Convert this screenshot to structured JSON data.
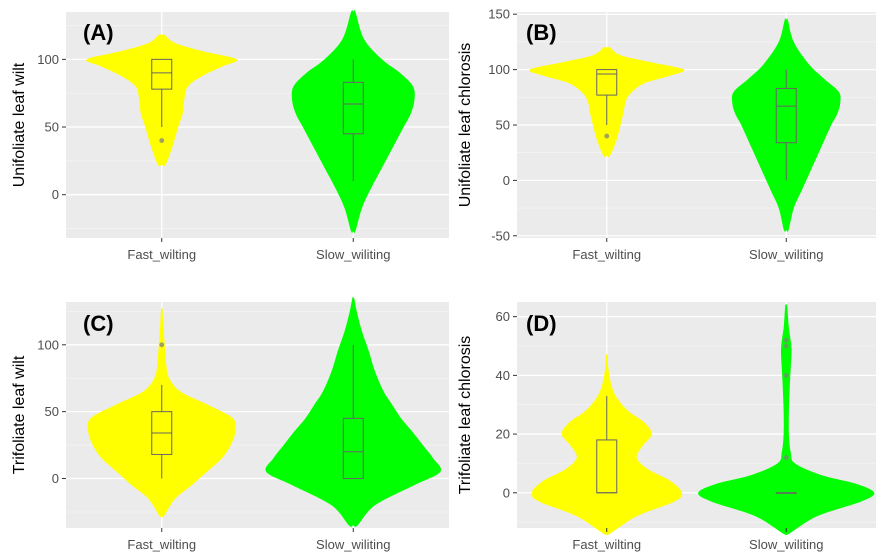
{
  "chart_data": [
    {
      "type": "violin",
      "panel_label": "(A)",
      "ylabel": "Unifoliate leaf wilt",
      "categories": [
        "Fast_wilting",
        "Slow_wiliting"
      ],
      "ylim": [
        -32,
        135
      ],
      "yticks": [
        0,
        50,
        100
      ],
      "grid": true,
      "series": [
        {
          "category": "Fast_wilting",
          "color": "#ffff00",
          "box": {
            "q1": 78,
            "median": 90,
            "q3": 100,
            "whisker_low": 50,
            "whisker_high": 100
          },
          "outliers": [
            40
          ],
          "density": {
            "y": [
              22,
              35,
              50,
              60,
              70,
              80,
              88,
              95,
              100,
              106,
              112,
              118
            ],
            "w": [
              0.05,
              0.14,
              0.22,
              0.28,
              0.3,
              0.35,
              0.55,
              0.82,
              1.0,
              0.55,
              0.18,
              0.04
            ]
          }
        },
        {
          "category": "Slow_wiliting",
          "color": "#00ff00",
          "box": {
            "q1": 45,
            "median": 67,
            "q3": 83,
            "whisker_low": 10,
            "whisker_high": 100
          },
          "outliers": [],
          "density": {
            "y": [
              -27,
              -10,
              5,
              20,
              35,
              50,
              60,
              70,
              80,
              90,
              100,
              115,
              135
            ],
            "w": [
              0.03,
              0.12,
              0.25,
              0.4,
              0.55,
              0.7,
              0.8,
              0.85,
              0.83,
              0.65,
              0.4,
              0.15,
              0.03
            ]
          }
        }
      ]
    },
    {
      "type": "violin",
      "panel_label": "(B)",
      "ylabel": "Unifoliate leaf chlorosis",
      "categories": [
        "Fast_wilting",
        "Slow_wiliting"
      ],
      "ylim": [
        -52,
        152
      ],
      "yticks": [
        -50,
        0,
        50,
        100,
        150
      ],
      "grid": true,
      "series": [
        {
          "category": "Fast_wilting",
          "color": "#ffff00",
          "box": {
            "q1": 77,
            "median": 96,
            "q3": 100,
            "whisker_low": 50,
            "whisker_high": 100
          },
          "outliers": [
            40
          ],
          "density": {
            "y": [
              22,
              35,
              50,
              62,
              72,
              80,
              88,
              94,
              100,
              107,
              113,
              120
            ],
            "w": [
              0.04,
              0.12,
              0.18,
              0.22,
              0.25,
              0.33,
              0.5,
              0.8,
              1.0,
              0.55,
              0.18,
              0.04
            ]
          }
        },
        {
          "category": "Slow_wiliting",
          "color": "#00ff00",
          "box": {
            "q1": 34,
            "median": 67,
            "q3": 83,
            "whisker_low": 0,
            "whisker_high": 100
          },
          "outliers": [],
          "density": {
            "y": [
              -45,
              -25,
              -10,
              5,
              20,
              35,
              50,
              60,
              70,
              80,
              92,
              105,
              125,
              145
            ],
            "w": [
              0.03,
              0.1,
              0.2,
              0.3,
              0.4,
              0.5,
              0.6,
              0.68,
              0.72,
              0.7,
              0.5,
              0.3,
              0.1,
              0.02
            ]
          }
        }
      ]
    },
    {
      "type": "violin",
      "panel_label": "(C)",
      "ylabel": "Trifoliate leaf wilt",
      "categories": [
        "Fast_wilting",
        "Slow_wiliting"
      ],
      "ylim": [
        -37,
        132
      ],
      "yticks": [
        0,
        50,
        100
      ],
      "grid": true,
      "series": [
        {
          "category": "Fast_wilting",
          "color": "#ffff00",
          "box": {
            "q1": 18,
            "median": 34,
            "q3": 50,
            "whisker_low": 0,
            "whisker_high": 70
          },
          "outliers": [
            100
          ],
          "density": {
            "y": [
              -28,
              -15,
              -5,
              5,
              15,
              25,
              35,
              45,
              55,
              65,
              75,
              85,
              100,
              115,
              127
            ],
            "w": [
              0.03,
              0.18,
              0.4,
              0.6,
              0.8,
              0.92,
              0.98,
              0.95,
              0.62,
              0.25,
              0.1,
              0.06,
              0.04,
              0.02,
              0.01
            ]
          }
        },
        {
          "category": "Slow_wiliting",
          "color": "#00ff00",
          "box": {
            "q1": 0,
            "median": 20,
            "q3": 45,
            "whisker_low": 0,
            "whisker_high": 100
          },
          "outliers": [],
          "density": {
            "y": [
              -35,
              -20,
              -5,
              5,
              15,
              25,
              35,
              45,
              55,
              65,
              80,
              95,
              110,
              125,
              135
            ],
            "w": [
              0.05,
              0.25,
              0.7,
              1.0,
              0.92,
              0.8,
              0.68,
              0.55,
              0.45,
              0.35,
              0.25,
              0.18,
              0.1,
              0.04,
              0.01
            ]
          }
        }
      ]
    },
    {
      "type": "violin",
      "panel_label": "(D)",
      "ylabel": "Trifoliate leaf chlorosis",
      "categories": [
        "Fast_wilting",
        "Slow_wiliting"
      ],
      "ylim": [
        -12,
        65
      ],
      "yticks": [
        0,
        20,
        40,
        60
      ],
      "grid": true,
      "series": [
        {
          "category": "Fast_wilting",
          "color": "#ffff00",
          "box": {
            "q1": 0,
            "median": 0,
            "q3": 18,
            "whisker_low": 0,
            "whisker_high": 33
          },
          "outliers": [],
          "density": {
            "y": [
              -14,
              -8,
              -3,
              0,
              4,
              8,
              12,
              16,
              20,
              24,
              28,
              33,
              38,
              43,
              47
            ],
            "w": [
              0.04,
              0.4,
              0.9,
              1.0,
              0.85,
              0.55,
              0.4,
              0.48,
              0.6,
              0.5,
              0.28,
              0.12,
              0.05,
              0.02,
              0.01
            ]
          }
        },
        {
          "category": "Slow_wiliting",
          "color": "#00ff00",
          "box": {
            "q1": 0,
            "median": 0,
            "q3": 0,
            "whisker_low": 0,
            "whisker_high": 0
          },
          "outliers": [
            12,
            40,
            50,
            52
          ],
          "density": {
            "y": [
              -14,
              -8,
              -3,
              0,
              3,
              6,
              10,
              14,
              20,
              28,
              36,
              42,
              48,
              52,
              56,
              60,
              64
            ],
            "w": [
              0.03,
              0.35,
              0.85,
              1.0,
              0.8,
              0.4,
              0.1,
              0.05,
              0.03,
              0.03,
              0.04,
              0.05,
              0.06,
              0.05,
              0.03,
              0.02,
              0.01
            ]
          }
        }
      ]
    }
  ]
}
